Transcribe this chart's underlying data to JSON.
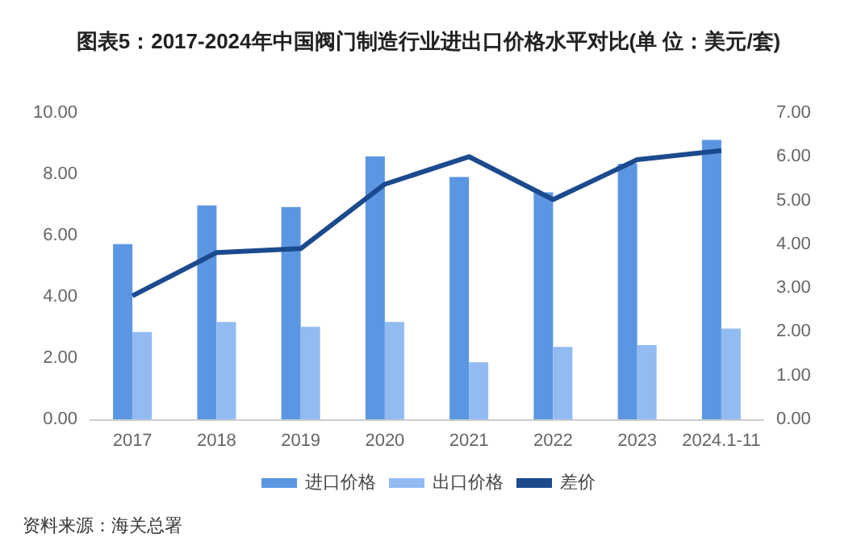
{
  "chart_data": {
    "type": "bar",
    "title": "图表5：2017-2024年中国阀门制造行业进出口价格水平对比(单 位：美元/套)",
    "categories": [
      "2017",
      "2018",
      "2019",
      "2020",
      "2021",
      "2022",
      "2023",
      "2024.1-11"
    ],
    "series": [
      {
        "name": "进口价格",
        "color": "#5b96e3",
        "values": [
          5.72,
          6.98,
          6.93,
          8.58,
          7.91,
          7.41,
          8.34,
          9.12
        ]
      },
      {
        "name": "出口价格",
        "color": "#92bbf2",
        "values": [
          2.85,
          3.18,
          3.02,
          3.18,
          1.86,
          2.36,
          2.42,
          2.96
        ]
      },
      {
        "name": "差价",
        "type": "line",
        "axis": "y2",
        "color": "#1b4a8e",
        "values": [
          2.82,
          3.81,
          3.9,
          5.37,
          6.0,
          5.02,
          5.93,
          6.14
        ]
      }
    ],
    "ylim": [
      0,
      10
    ],
    "yticks": [
      {
        "value": 0,
        "label": "0.00"
      },
      {
        "value": 2,
        "label": "2.00"
      },
      {
        "value": 4,
        "label": "4.00"
      },
      {
        "value": 6,
        "label": "6.00"
      },
      {
        "value": 8,
        "label": "8.00"
      },
      {
        "value": 10,
        "label": "10.00"
      }
    ],
    "y2lim": [
      0,
      7
    ],
    "y2ticks": [
      {
        "value": 0,
        "label": "0.00"
      },
      {
        "value": 1,
        "label": "1.00"
      },
      {
        "value": 2,
        "label": "2.00"
      },
      {
        "value": 3,
        "label": "3.00"
      },
      {
        "value": 4,
        "label": "4.00"
      },
      {
        "value": 5,
        "label": "5.00"
      },
      {
        "value": 6,
        "label": "6.00"
      },
      {
        "value": 7,
        "label": "7.00"
      }
    ],
    "grid": false,
    "legend": "bottom",
    "marker": "none",
    "annotations": [
      "资料来源：海关总署"
    ]
  }
}
